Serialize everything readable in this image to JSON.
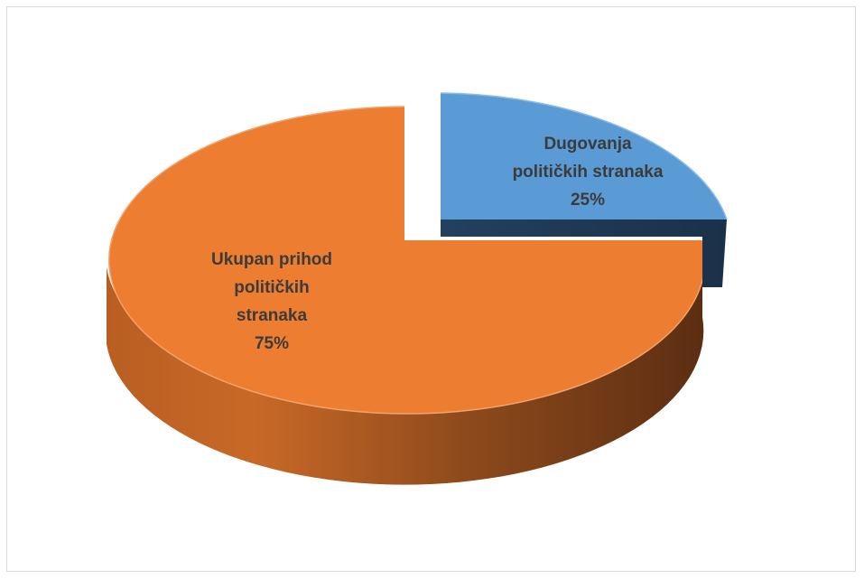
{
  "chart_data": {
    "type": "pie",
    "three_d": true,
    "exploded_slice": "Dugovanja političkih stranaka",
    "legend": "none",
    "title": "",
    "slices": [
      {
        "name": "Ukupan prihod političkih stranaka",
        "value": 75,
        "label_lines": [
          "Ukupan prihod",
          "političkih",
          "stranaka",
          "75%"
        ],
        "color": "#ED7D31",
        "side_color": "#8B4513"
      },
      {
        "name": "Dugovanja političkih stranaka",
        "value": 25,
        "label_lines": [
          "Dugovanja",
          "političkih stranaka",
          "25%"
        ],
        "color": "#5B9BD5",
        "side_color": "#203A55"
      }
    ]
  }
}
